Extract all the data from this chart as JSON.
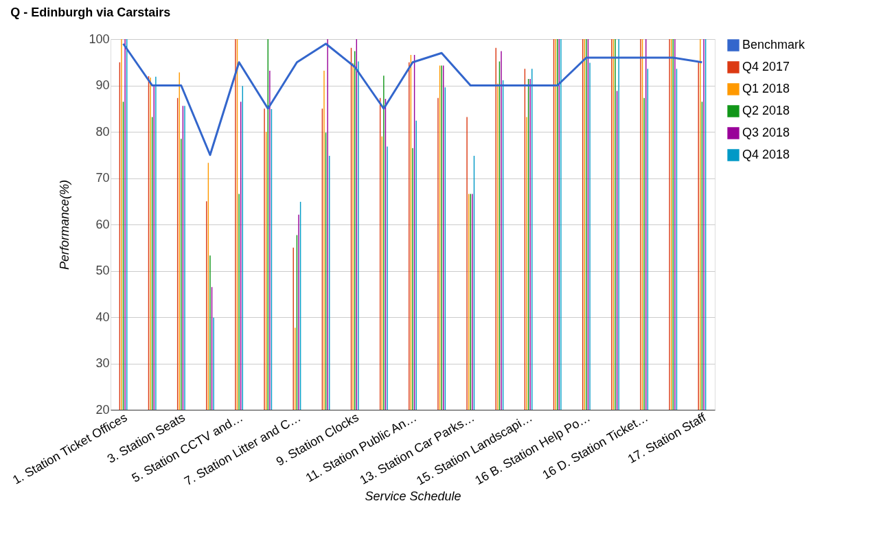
{
  "chart_data": {
    "type": "bar",
    "title": "Q - Edinburgh via Carstairs",
    "xlabel": "Service Schedule",
    "ylabel": "Performance(%)",
    "categories": [
      "1. Station Ticket Offices",
      null,
      "3. Station Seats",
      null,
      "5. Station CCTV and…",
      null,
      "7. Station Litter and C…",
      null,
      "9. Station Clocks",
      null,
      "11. Station Public An…",
      null,
      "13. Station Car Parks…",
      null,
      "15. Station Landscapi…",
      null,
      "16 B. Station Help Po…",
      null,
      "16 D. Station Ticket…",
      null,
      "17. Station Staff"
    ],
    "series": [
      {
        "name": "Benchmark",
        "type": "line",
        "color": "#3366cc",
        "values": [
          99,
          90,
          90,
          75,
          95,
          85,
          95,
          99,
          94,
          85,
          95,
          97,
          90,
          90,
          90,
          90,
          96,
          96,
          96,
          96,
          95
        ]
      },
      {
        "name": "Q4 2017",
        "color": "#dc3912",
        "values": [
          95,
          92,
          87.3,
          65,
          100,
          85,
          55,
          85,
          98.1,
          87.3,
          95,
          87.3,
          83.2,
          98.1,
          93.6,
          100,
          100,
          100,
          100,
          100,
          95
        ]
      },
      {
        "name": "Q1 2018",
        "color": "#ff9900",
        "values": [
          100,
          91.7,
          92.8,
          73.3,
          100,
          80,
          37.7,
          93.2,
          94.8,
          79,
          96.6,
          94.3,
          66.6,
          90.4,
          83.2,
          100,
          100,
          100,
          100,
          100,
          100
        ]
      },
      {
        "name": "Q2 2018",
        "color": "#109618",
        "values": [
          86.5,
          83.2,
          78.5,
          53.3,
          66.6,
          100,
          57.7,
          79.8,
          97.4,
          92.1,
          76.5,
          94.3,
          66.6,
          95.2,
          91.4,
          100,
          100,
          100,
          87.3,
          100,
          86.5
        ]
      },
      {
        "name": "Q3 2018",
        "color": "#990099",
        "values": [
          100,
          90,
          85.6,
          46.5,
          86.5,
          93.2,
          62.1,
          100,
          100,
          87.1,
          96.6,
          94.3,
          66.6,
          97.4,
          91.4,
          100,
          100,
          88.8,
          100,
          100,
          100
        ]
      },
      {
        "name": "Q4 2018",
        "color": "#0099c6",
        "values": [
          100,
          91.9,
          85.6,
          39.9,
          89.9,
          84.9,
          64.9,
          74.8,
          95.2,
          76.8,
          82.4,
          89.6,
          74.8,
          91.1,
          93.6,
          100,
          94.9,
          100,
          93.6,
          93.6,
          100
        ]
      }
    ],
    "ylim": [
      20,
      100
    ],
    "yticks": [
      20,
      30,
      40,
      50,
      60,
      70,
      80,
      90,
      100
    ],
    "grid": "y",
    "legend": "right"
  }
}
